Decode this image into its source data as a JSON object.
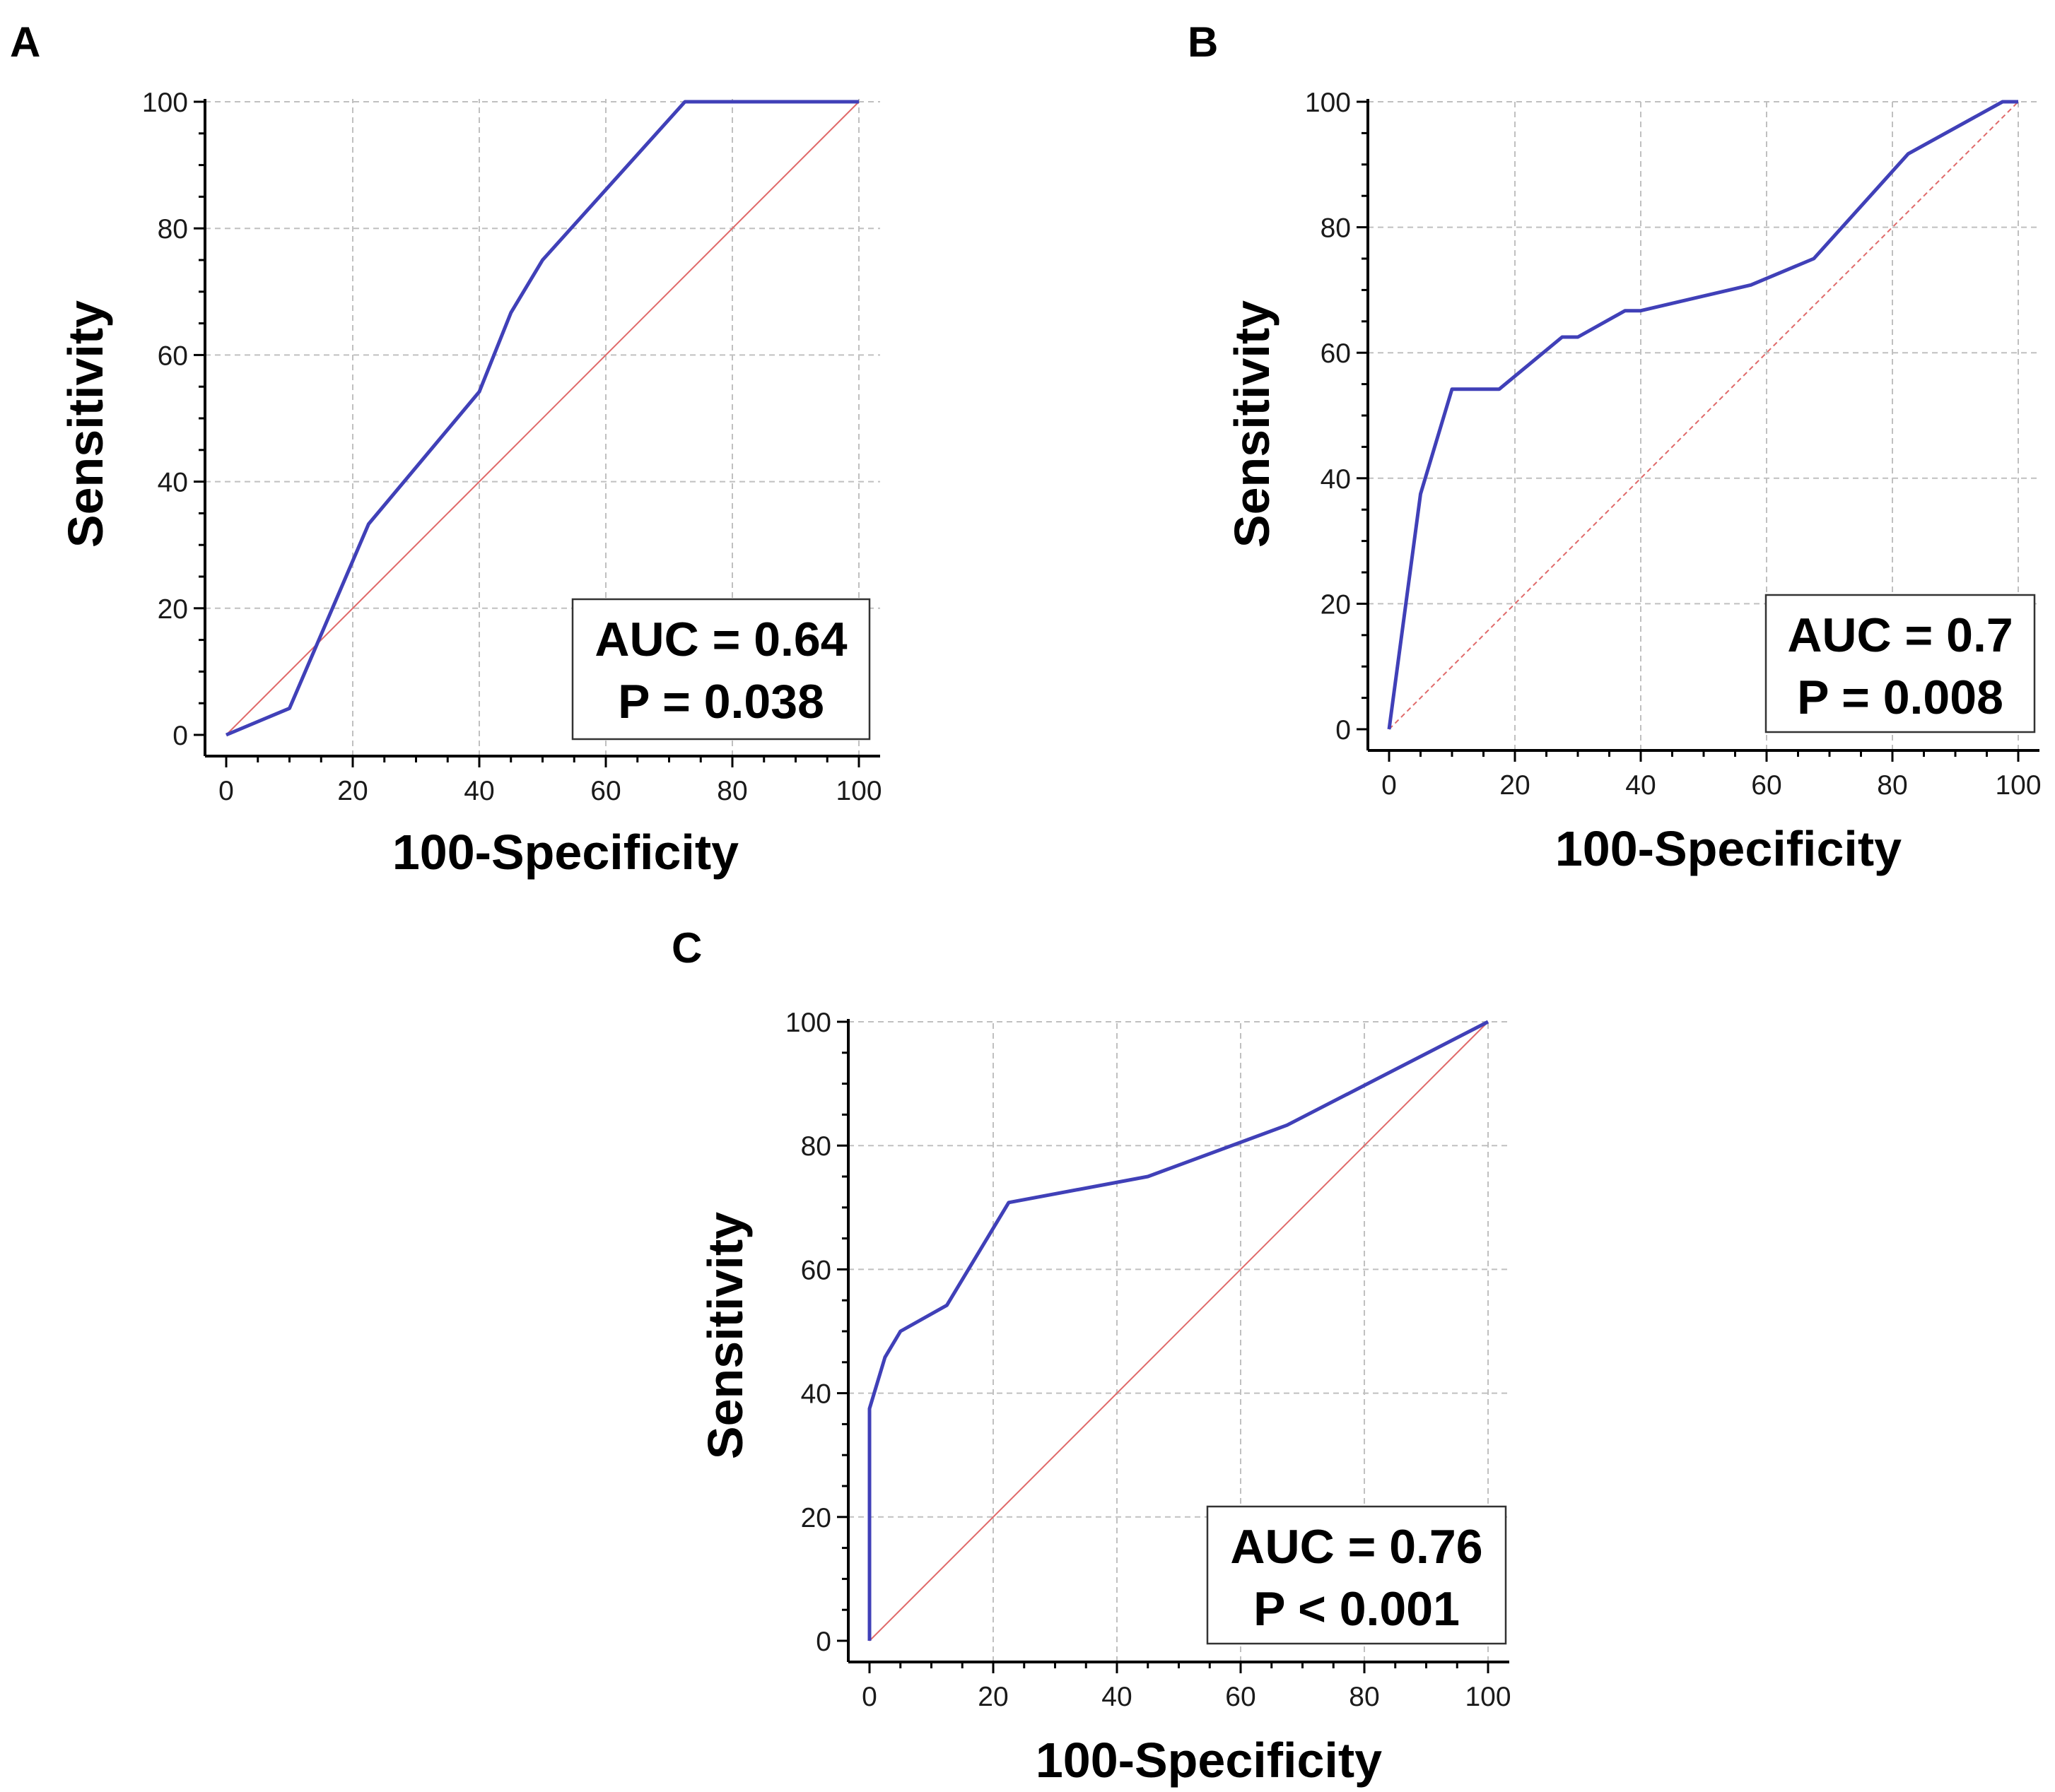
{
  "colors": {
    "roc_curve": "#4040b8",
    "reference_line": "#e06a6a",
    "grid": "#c0c0c0",
    "axis": "#000000"
  },
  "chart_data": [
    {
      "panel": "A",
      "type": "line",
      "xlabel": "100-Specificity",
      "ylabel": "Sensitivity",
      "xlim": [
        0,
        100
      ],
      "ylim": [
        0,
        100
      ],
      "xticks": [
        0,
        20,
        40,
        60,
        80,
        100
      ],
      "yticks": [
        0,
        20,
        40,
        60,
        80,
        100
      ],
      "grid": true,
      "series": [
        {
          "x": [
            0,
            10,
            22.5,
            40,
            45,
            50,
            72.5,
            100
          ],
          "y": [
            0,
            4.2,
            33.3,
            54.2,
            66.7,
            75,
            100,
            100
          ]
        }
      ],
      "reference_line": {
        "x": [
          0,
          100
        ],
        "y": [
          0,
          100
        ]
      },
      "annotation": [
        "AUC = 0.64",
        "P = 0.038"
      ]
    },
    {
      "panel": "B",
      "type": "line",
      "xlabel": "100-Specificity",
      "ylabel": "Sensitivity",
      "xlim": [
        0,
        100
      ],
      "ylim": [
        0,
        100
      ],
      "xticks": [
        0,
        20,
        40,
        60,
        80,
        100
      ],
      "yticks": [
        0,
        20,
        40,
        60,
        80,
        100
      ],
      "grid": true,
      "series": [
        {
          "x": [
            0,
            5,
            10,
            17.5,
            27.5,
            30,
            37.5,
            40,
            57.5,
            67.5,
            82.5,
            97.5,
            100
          ],
          "y": [
            0,
            37.5,
            54.2,
            54.2,
            62.5,
            62.5,
            66.7,
            66.7,
            70.8,
            75,
            91.7,
            100,
            100
          ]
        }
      ],
      "reference_line": {
        "x": [
          0,
          100
        ],
        "y": [
          0,
          100
        ]
      },
      "annotation": [
        "AUC = 0.7",
        "P = 0.008"
      ]
    },
    {
      "panel": "C",
      "type": "line",
      "xlabel": "100-Specificity",
      "ylabel": "Sensitivity",
      "xlim": [
        0,
        100
      ],
      "ylim": [
        0,
        100
      ],
      "xticks": [
        0,
        20,
        40,
        60,
        80,
        100
      ],
      "yticks": [
        0,
        20,
        40,
        60,
        80,
        100
      ],
      "grid": true,
      "series": [
        {
          "x": [
            0,
            0,
            2.5,
            5,
            12.5,
            22.5,
            45,
            67.5,
            100
          ],
          "y": [
            0,
            37.5,
            45.8,
            50,
            54.2,
            70.8,
            75,
            83.3,
            100
          ]
        }
      ],
      "reference_line": {
        "x": [
          0,
          100
        ],
        "y": [
          0,
          100
        ]
      },
      "annotation": [
        "AUC = 0.76",
        "P < 0.001"
      ]
    }
  ]
}
